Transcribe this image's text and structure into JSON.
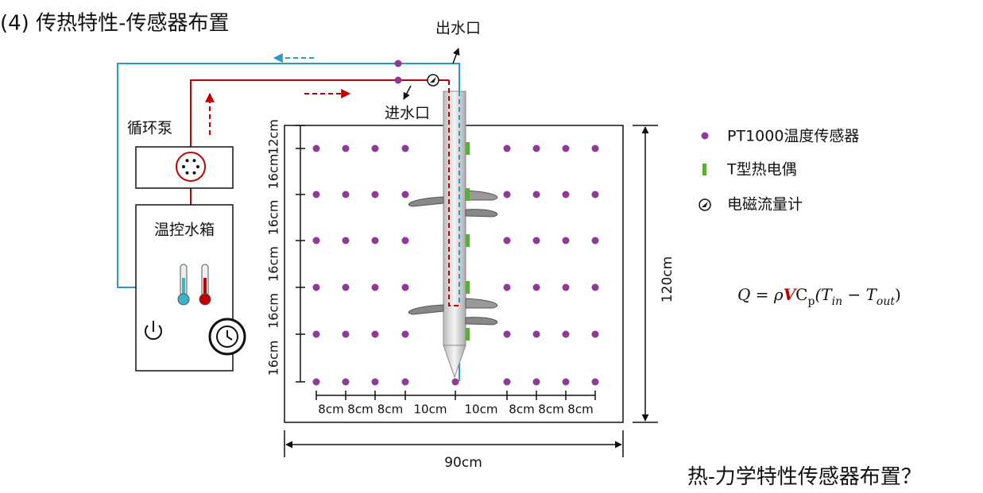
{
  "header": {
    "title": "(4) 传热特性-传感器布置"
  },
  "labels": {
    "outlet": "出水口",
    "inlet": "进水口",
    "pump": "循环泵",
    "tank": "温控水箱"
  },
  "legend": [
    "PT1000温度传感器",
    "T型热电偶",
    "电磁流量计"
  ],
  "dimensions": {
    "vertical": [
      "12cm",
      "16cm",
      "16cm",
      "16cm",
      "16cm",
      "16cm"
    ],
    "horizontal": [
      "8cm",
      "8cm",
      "8cm",
      "10cm",
      "10cm",
      "8cm",
      "8cm",
      "8cm"
    ],
    "height": "120cm",
    "width": "90cm"
  },
  "formula": [
    "Q = ρ",
    "V",
    "C",
    "p",
    "(T",
    "in",
    " − T",
    "out",
    ")"
  ],
  "footer": "热-力学特性传感器布置？"
}
